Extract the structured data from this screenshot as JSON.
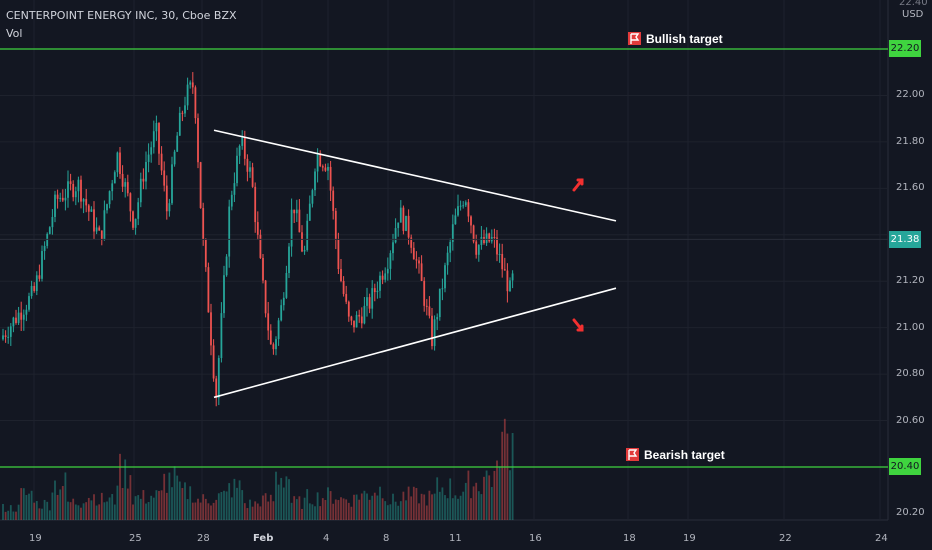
{
  "header": {
    "symbol": "CENTERPOINT ENERGY INC, 30, Cboe BZX",
    "indicator": "Vol"
  },
  "price_axis": {
    "currency": "USD",
    "top_partial_label": "22.40",
    "labels": [
      "22.00",
      "21.80",
      "21.60",
      "21.20",
      "21.00",
      "20.80",
      "20.60",
      "20.20"
    ],
    "current_price": "21.38",
    "bullish_target_price": "22.20",
    "bearish_target_price": "20.40"
  },
  "time_axis": {
    "labels": [
      "19",
      "25",
      "28",
      "Feb",
      "4",
      "8",
      "11",
      "16",
      "18",
      "19",
      "22",
      "24"
    ]
  },
  "annotations": {
    "bullish_label": "Bullish target",
    "bearish_label": "Bearish target"
  },
  "colors": {
    "background": "#131722",
    "bullish_candle": "#26a69a",
    "bearish_candle": "#ef5350",
    "target_line": "#3fd43f",
    "trendline": "#ffffff",
    "arrow": "#f23030"
  },
  "chart_data": {
    "type": "candlestick",
    "title": "CENTERPOINT ENERGY INC, 30, Cboe BZX",
    "currency": "USD",
    "ylim": [
      20.18,
      22.42
    ],
    "current_price": 21.38,
    "horizontal_levels": [
      {
        "label": "Bullish target",
        "price": 22.2
      },
      {
        "label": "Bearish target",
        "price": 20.4
      }
    ],
    "trendlines": [
      {
        "name": "upper",
        "from": {
          "x": "Jan 28",
          "y": 21.85
        },
        "to": {
          "x": "Feb 17",
          "y": 21.46
        }
      },
      {
        "name": "lower",
        "from": {
          "x": "Jan 28",
          "y": 20.7
        },
        "to": {
          "x": "Feb 17",
          "y": 21.17
        }
      }
    ],
    "price_path": [
      {
        "x": "Jan 19",
        "y": 21.15
      },
      {
        "x": "Jan 20",
        "y": 21.55
      },
      {
        "x": "Jan 21",
        "y": 21.62
      },
      {
        "x": "Jan 22",
        "y": 21.38
      },
      {
        "x": "Jan 22",
        "y": 21.75
      },
      {
        "x": "Jan 25",
        "y": 21.45
      },
      {
        "x": "Jan 25",
        "y": 21.7
      },
      {
        "x": "Jan 26",
        "y": 21.85
      },
      {
        "x": "Jan 26",
        "y": 21.5
      },
      {
        "x": "Jan 27",
        "y": 21.85
      },
      {
        "x": "Jan 27",
        "y": 22.0
      },
      {
        "x": "Jan 27",
        "y": 22.05
      },
      {
        "x": "Jan 28",
        "y": 21.42
      },
      {
        "x": "Jan 28",
        "y": 20.7
      },
      {
        "x": "Jan 29",
        "y": 21.55
      },
      {
        "x": "Jan 29",
        "y": 21.8
      },
      {
        "x": "Jan 29",
        "y": 21.65
      },
      {
        "x": "Feb 1",
        "y": 21.2
      },
      {
        "x": "Feb 1",
        "y": 20.88
      },
      {
        "x": "Feb 2",
        "y": 21.1
      },
      {
        "x": "Feb 2",
        "y": 21.55
      },
      {
        "x": "Feb 3",
        "y": 21.3
      },
      {
        "x": "Feb 3",
        "y": 21.75
      },
      {
        "x": "Feb 4",
        "y": 21.7
      },
      {
        "x": "Feb 4",
        "y": 21.25
      },
      {
        "x": "Feb 5",
        "y": 21.0
      },
      {
        "x": "Feb 5",
        "y": 21.1
      },
      {
        "x": "Feb 8",
        "y": 21.3
      },
      {
        "x": "Feb 8",
        "y": 21.5
      },
      {
        "x": "Feb 9",
        "y": 21.4
      },
      {
        "x": "Feb 9",
        "y": 21.2
      },
      {
        "x": "Feb 10",
        "y": 20.95
      },
      {
        "x": "Feb 10",
        "y": 21.2
      },
      {
        "x": "Feb 11",
        "y": 21.45
      },
      {
        "x": "Feb 11",
        "y": 21.58
      },
      {
        "x": "Feb 12",
        "y": 21.35
      },
      {
        "x": "Feb 12",
        "y": 21.38
      },
      {
        "x": "Feb 15",
        "y": 21.16
      },
      {
        "x": "Feb 15",
        "y": 21.38
      }
    ],
    "volume": {
      "relative_levels": [
        0.15,
        0.32,
        0.2,
        0.45,
        0.22,
        0.3,
        0.25,
        0.6,
        0.28,
        0.3,
        0.5,
        0.35,
        0.25,
        0.3,
        0.4,
        0.2,
        0.25,
        0.55,
        0.22,
        0.28,
        0.3,
        0.26,
        0.32,
        0.38,
        0.24,
        0.3,
        0.28,
        0.4,
        0.35,
        0.45,
        0.55,
        1.0
      ]
    }
  }
}
